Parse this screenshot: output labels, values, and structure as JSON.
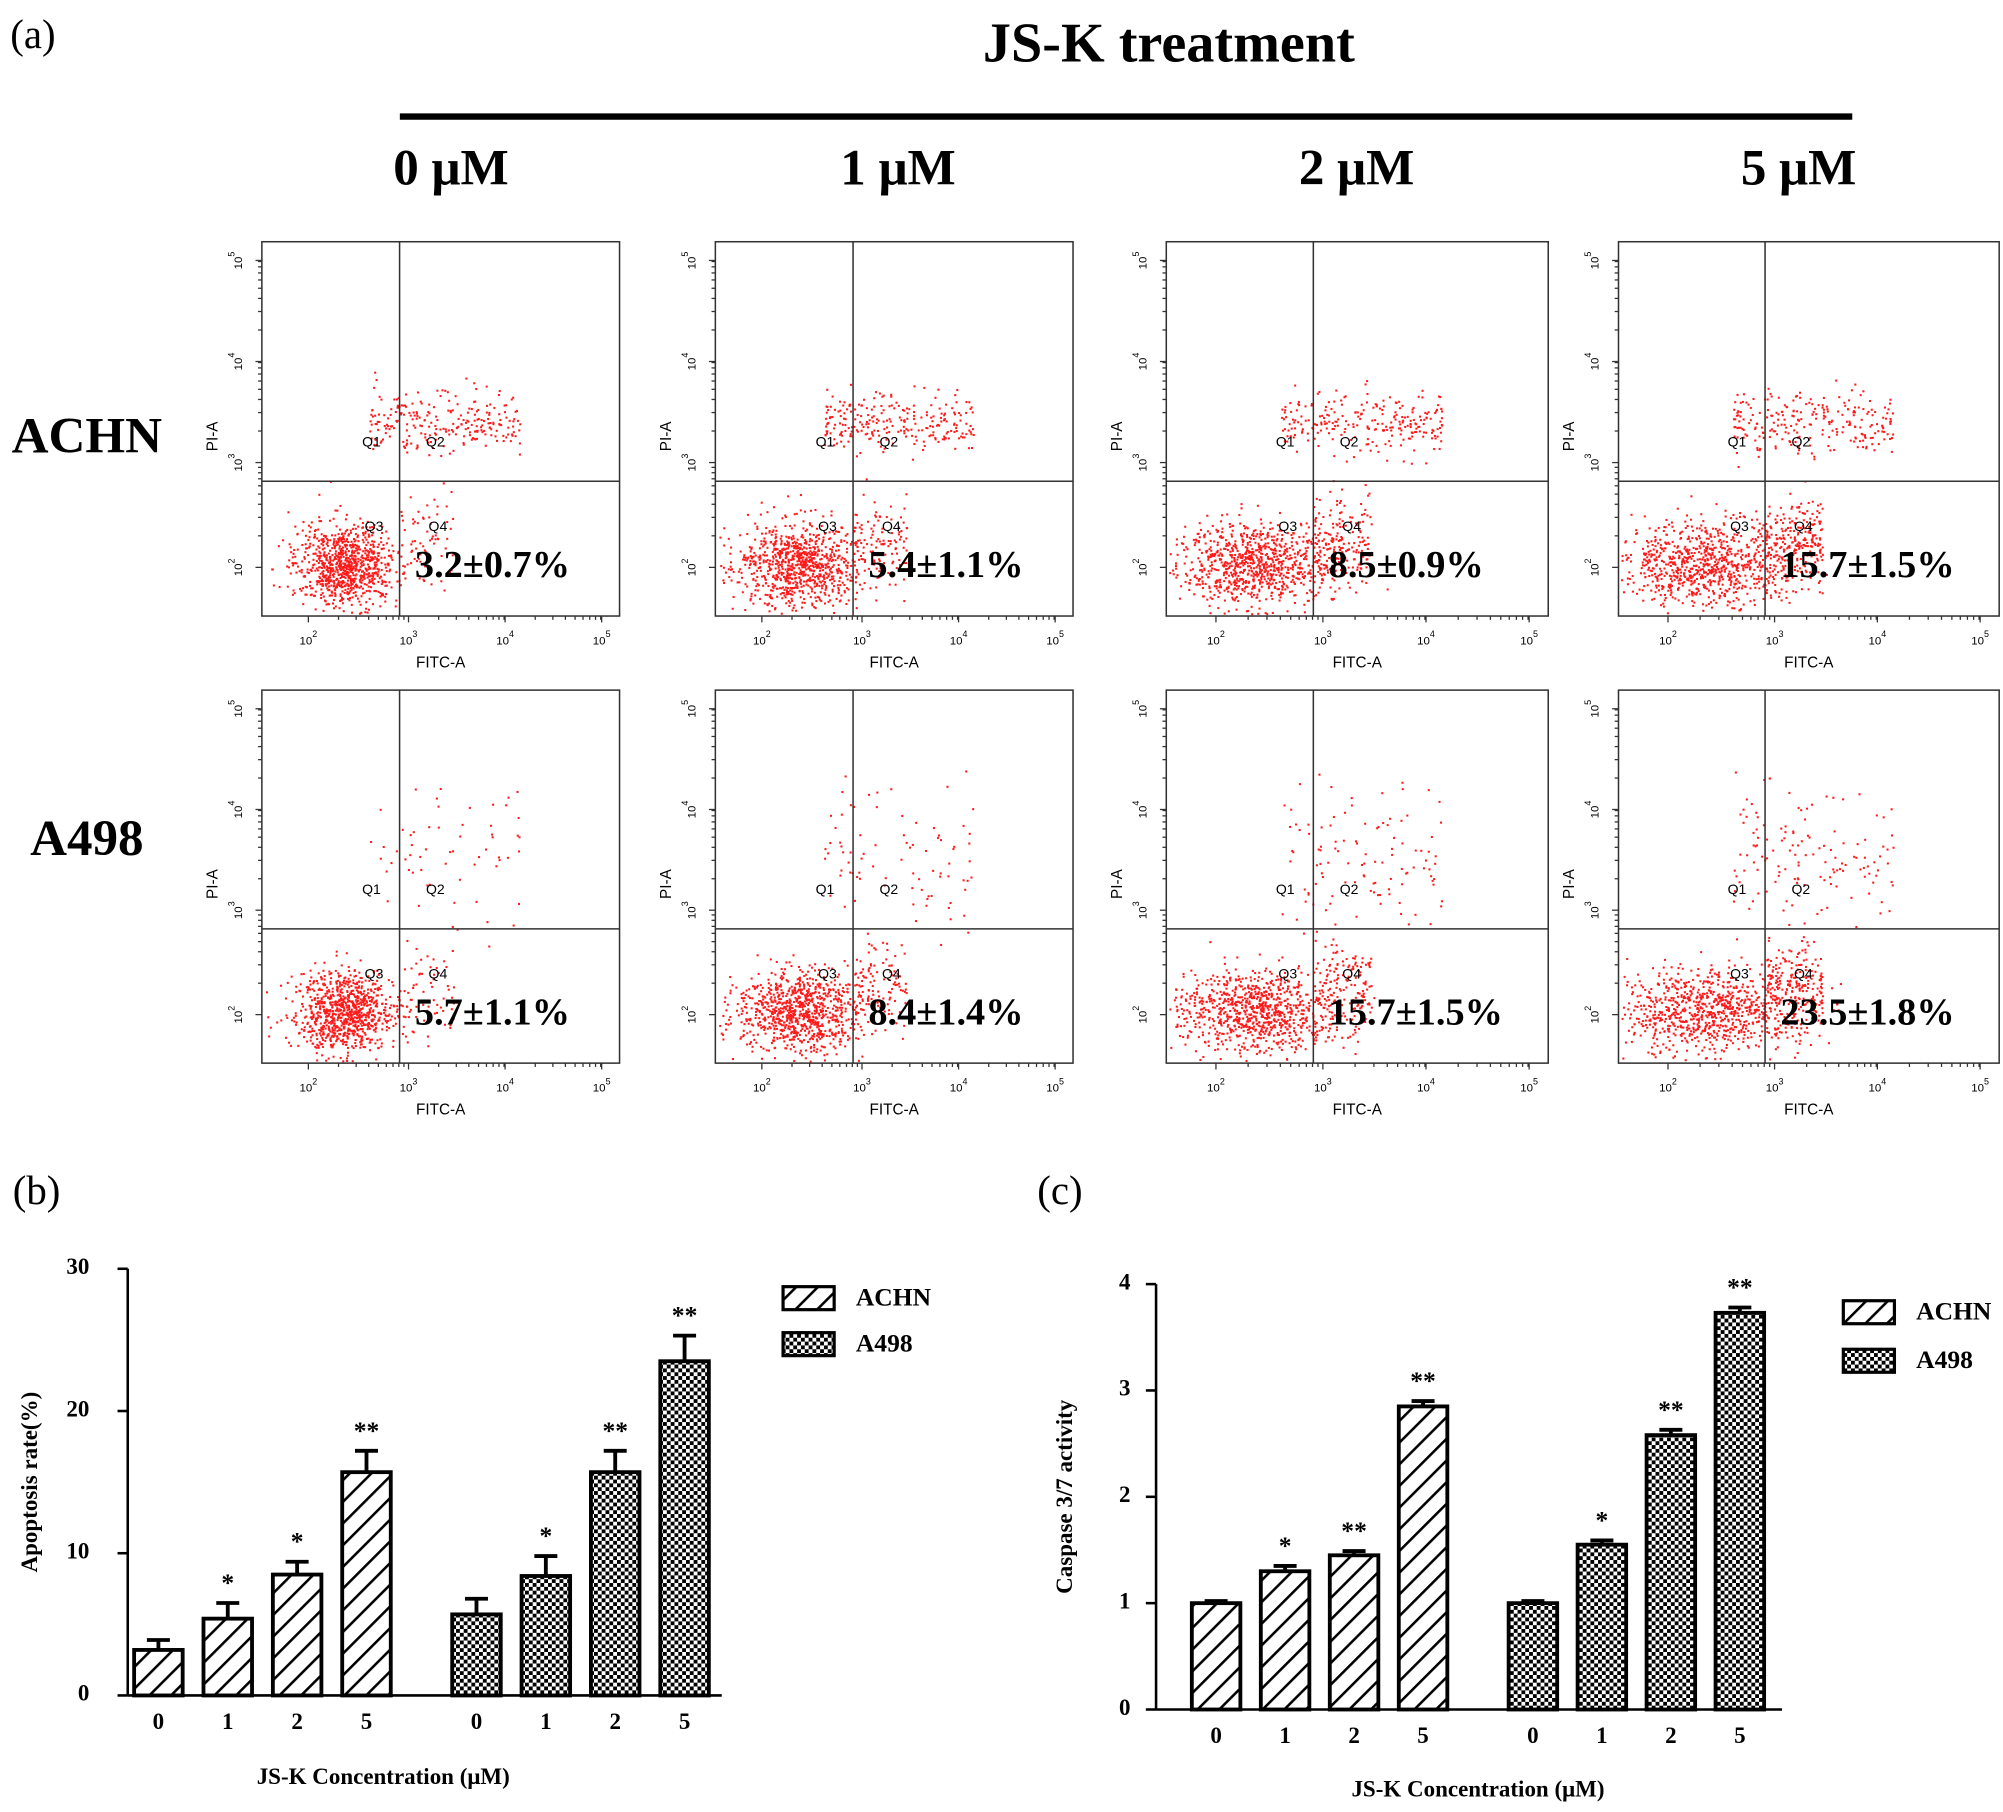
{
  "flow_panel": {
    "label": "(a)",
    "heading": "JS-K treatment",
    "concentrations": [
      "0 μM",
      "1 μM",
      "2 μM",
      "5 μM"
    ],
    "cell_lines": [
      "ACHN",
      "A498"
    ],
    "x_axis_label": "FITC-A",
    "y_axis_label": "PI-A",
    "quadrants": [
      "Q1",
      "Q2",
      "Q3",
      "Q4"
    ],
    "tick_base": "10",
    "tick_exponents": [
      "2",
      "3",
      "4",
      "5"
    ],
    "percentages": [
      [
        "3.2±0.7%",
        "5.4±1.1%",
        "8.5±0.9%",
        "15.7±1.5%"
      ],
      [
        "5.7±1.1%",
        "8.4±1.4%",
        "15.7±1.5%",
        "23.5±1.8%"
      ]
    ]
  },
  "chart_data": [
    {
      "type": "bar",
      "label": "(b)",
      "y_label": "Apoptosis rate(%)",
      "x_label": "JS-K Concentration (μM)",
      "categories": [
        "0",
        "1",
        "2",
        "5"
      ],
      "series": [
        {
          "name": "ACHN",
          "pattern": "hatch",
          "color": "#000000",
          "values": [
            3.2,
            5.4,
            8.5,
            15.7
          ],
          "errors": [
            0.7,
            1.1,
            0.9,
            1.5
          ],
          "significance": [
            null,
            "*",
            "*",
            "**"
          ]
        },
        {
          "name": "A498",
          "pattern": "checker",
          "color": "#000000",
          "values": [
            5.7,
            8.4,
            15.7,
            23.5
          ],
          "errors": [
            1.1,
            1.4,
            1.5,
            1.8
          ],
          "significance": [
            null,
            "*",
            "**",
            "**"
          ]
        }
      ],
      "ylim": [
        0,
        30
      ],
      "yticks": [
        0,
        10,
        20,
        30
      ],
      "legend": "upper-right",
      "grid": false
    },
    {
      "type": "bar",
      "label": "(c)",
      "y_label": "Caspase 3/7 activity",
      "x_label": "JS-K Concentration (μM)",
      "categories": [
        "0",
        "1",
        "2",
        "5"
      ],
      "series": [
        {
          "name": "ACHN",
          "pattern": "hatch",
          "color": "#000000",
          "values": [
            1.0,
            1.3,
            1.45,
            2.85
          ],
          "errors": [
            0.02,
            0.05,
            0.04,
            0.05
          ],
          "significance": [
            null,
            "*",
            "**",
            "**"
          ]
        },
        {
          "name": "A498",
          "pattern": "checker",
          "color": "#000000",
          "values": [
            1.0,
            1.55,
            2.58,
            3.73
          ],
          "errors": [
            0.02,
            0.04,
            0.05,
            0.05
          ],
          "significance": [
            null,
            "*",
            "**",
            "**"
          ]
        }
      ],
      "ylim": [
        0,
        4
      ],
      "yticks": [
        0,
        1,
        2,
        3,
        4
      ],
      "legend": "upper-right",
      "grid": false
    }
  ]
}
